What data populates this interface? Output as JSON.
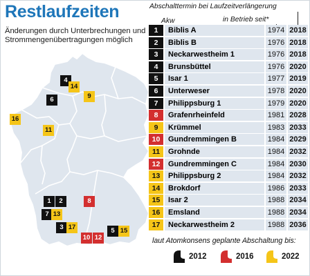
{
  "title": "Restlaufzeiten",
  "subtitle": "Änderungen durch Unterbrechungen und Strommengenübertragungen möglich",
  "header": {
    "abschalttermin": "Abschalttermin bei Laufzeitverlängerung",
    "in_betrieb": "in Betrieb seit*",
    "akw": "Akw"
  },
  "colors": {
    "black": "#111111",
    "red": "#d32f2f",
    "yellow": "#f5c518",
    "title": "#1e76b9",
    "row_bg": "#dfe6ee",
    "map_fill": "#dfe6ee",
    "map_line": "#ffffff"
  },
  "plants": [
    {
      "num": "1",
      "name": "Biblis A",
      "year": "1974",
      "end": "2018",
      "color": "black"
    },
    {
      "num": "2",
      "name": "Biblis B",
      "year": "1976",
      "end": "2018",
      "color": "black"
    },
    {
      "num": "3",
      "name": "Neckarwestheim 1",
      "year": "1976",
      "end": "2018",
      "color": "black"
    },
    {
      "num": "4",
      "name": "Brunsbüttel",
      "year": "1976",
      "end": "2020",
      "color": "black"
    },
    {
      "num": "5",
      "name": "Isar 1",
      "year": "1977",
      "end": "2019",
      "color": "black"
    },
    {
      "num": "6",
      "name": "Unterweser",
      "year": "1978",
      "end": "2020",
      "color": "black"
    },
    {
      "num": "7",
      "name": "Philippsburg 1",
      "year": "1979",
      "end": "2020",
      "color": "black"
    },
    {
      "num": "8",
      "name": "Grafenrheinfeld",
      "year": "1981",
      "end": "2028",
      "color": "red"
    },
    {
      "num": "9",
      "name": "Krümmel",
      "year": "1983",
      "end": "2033",
      "color": "yellow"
    },
    {
      "num": "10",
      "name": "Gundremmingen B",
      "year": "1984",
      "end": "2029",
      "color": "red"
    },
    {
      "num": "11",
      "name": "Grohnde",
      "year": "1984",
      "end": "2032",
      "color": "yellow"
    },
    {
      "num": "12",
      "name": "Gundremmingen C",
      "year": "1984",
      "end": "2030",
      "color": "red"
    },
    {
      "num": "13",
      "name": "Philippsburg 2",
      "year": "1984",
      "end": "2032",
      "color": "yellow"
    },
    {
      "num": "14",
      "name": "Brokdorf",
      "year": "1986",
      "end": "2033",
      "color": "yellow"
    },
    {
      "num": "15",
      "name": "Isar 2",
      "year": "1988",
      "end": "2034",
      "color": "yellow"
    },
    {
      "num": "16",
      "name": "Emsland",
      "year": "1988",
      "end": "2034",
      "color": "yellow"
    },
    {
      "num": "17",
      "name": "Neckarwestheim 2",
      "year": "1988",
      "end": "2036",
      "color": "yellow"
    }
  ],
  "legend": {
    "text": "laut Atomkonsens geplante Abschaltung bis:",
    "items": [
      {
        "label": "2012",
        "color": "black"
      },
      {
        "label": "2016",
        "color": "red"
      },
      {
        "label": "2022",
        "color": "yellow"
      }
    ]
  }
}
